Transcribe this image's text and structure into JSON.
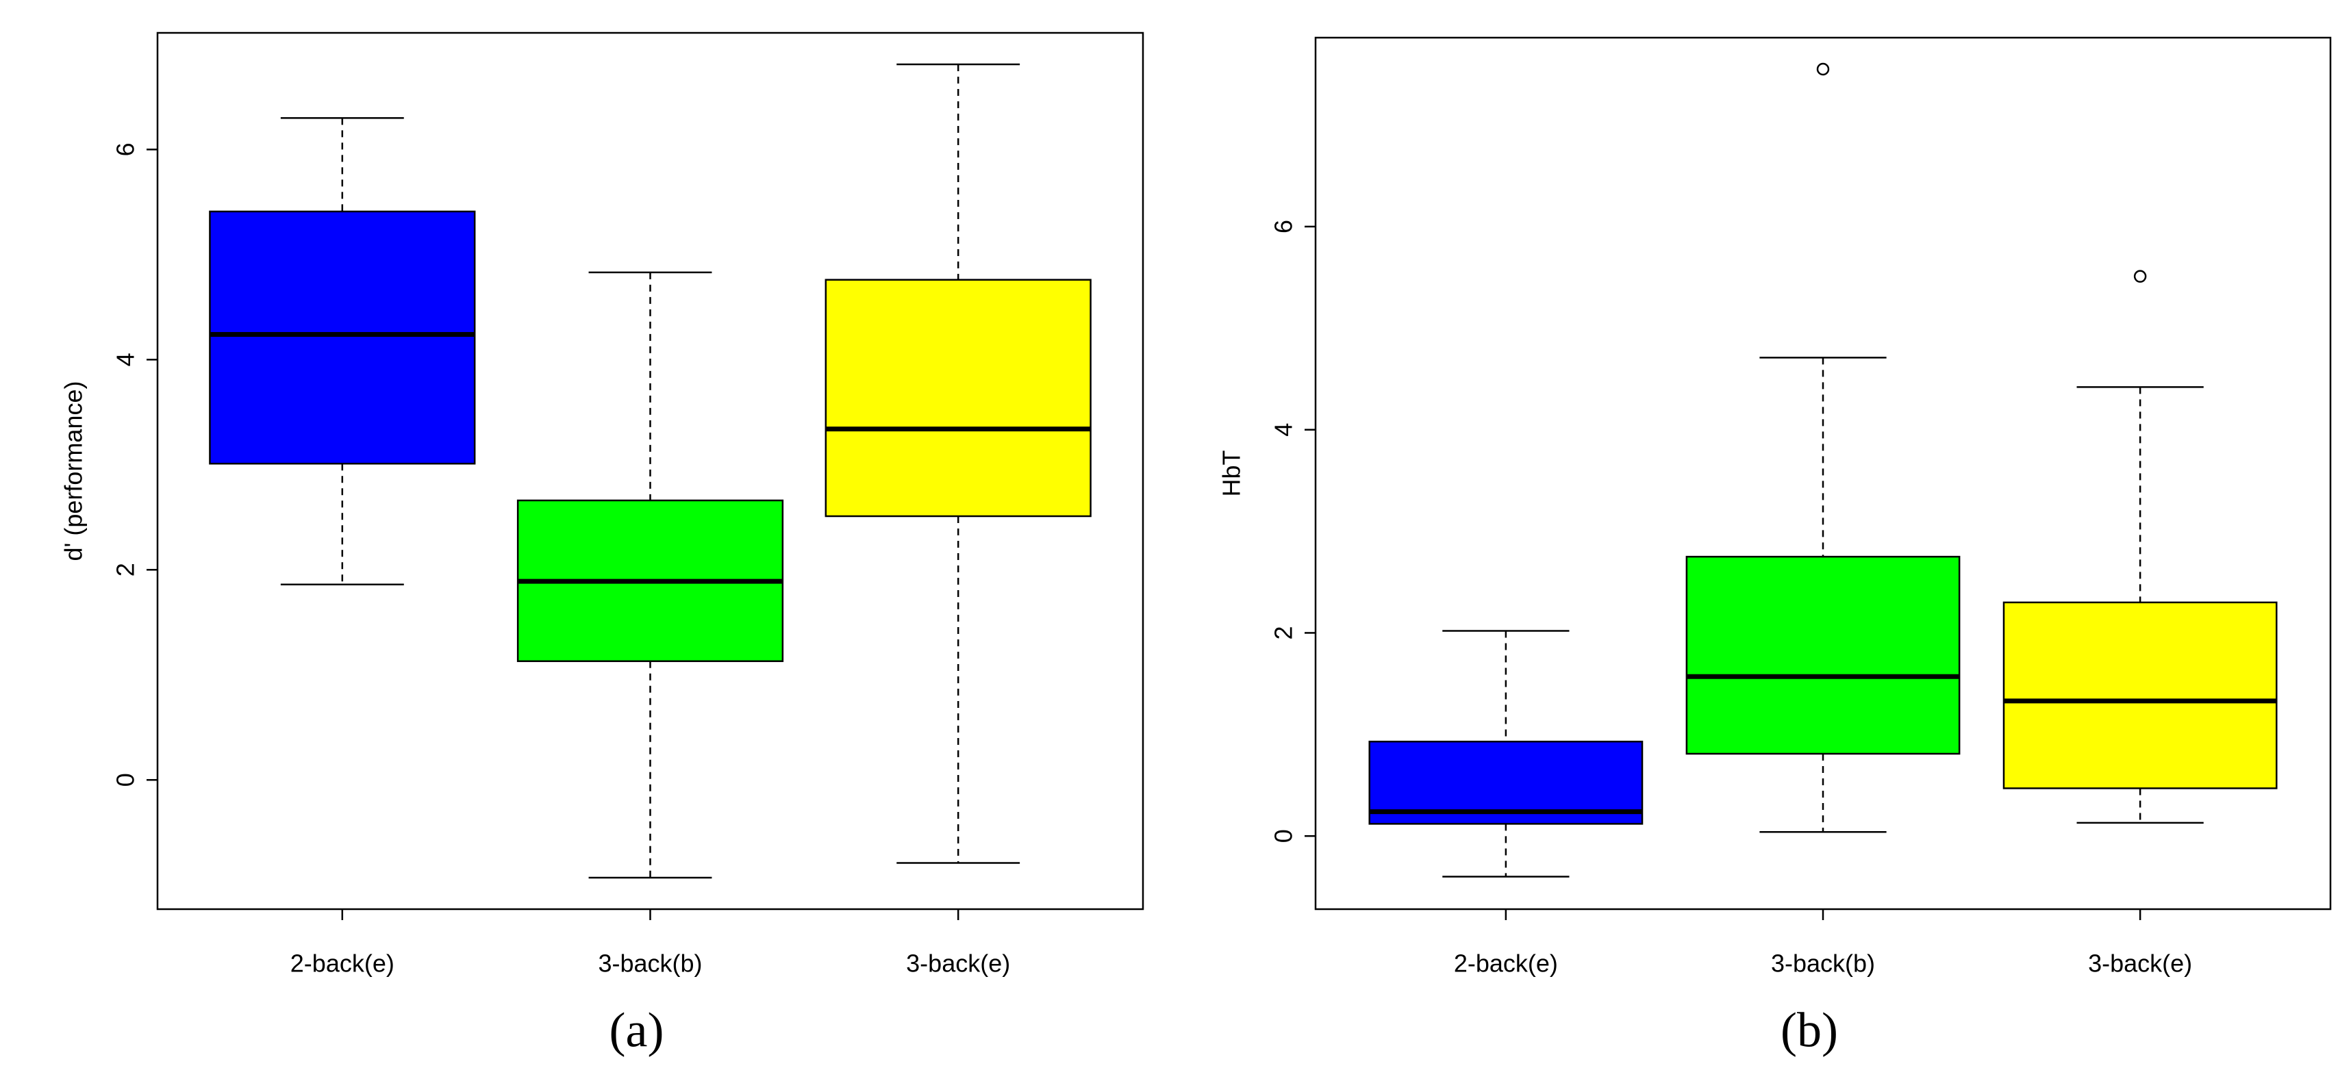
{
  "chart_data": [
    {
      "type": "box",
      "ylabel": "d' (performance)",
      "caption": "(a)",
      "categories": [
        "2-back(e)",
        "3-back(b)",
        "3-back(e)"
      ],
      "colors": [
        "#0000ff",
        "#00ff00",
        "#ffff00"
      ],
      "boxes": [
        {
          "min": 1.86,
          "q1": 3.01,
          "median": 4.24,
          "q3": 5.41,
          "max": 6.3,
          "outliers": []
        },
        {
          "min": -0.93,
          "q1": 1.13,
          "median": 1.89,
          "q3": 2.66,
          "max": 4.83,
          "outliers": []
        },
        {
          "min": -0.79,
          "q1": 2.51,
          "median": 3.34,
          "q3": 4.76,
          "max": 6.81,
          "outliers": []
        }
      ],
      "ylim": [
        -1.23,
        7.11
      ],
      "yticks": [
        0,
        2,
        4,
        6
      ]
    },
    {
      "type": "box",
      "ylabel": "HbT",
      "caption": "(b)",
      "categories": [
        "2-back(e)",
        "3-back(b)",
        "3-back(e)"
      ],
      "colors": [
        "#0000ff",
        "#00ff00",
        "#ffff00"
      ],
      "boxes": [
        {
          "min": -0.4,
          "q1": 0.12,
          "median": 0.24,
          "q3": 0.93,
          "max": 2.02,
          "outliers": []
        },
        {
          "min": 0.04,
          "q1": 0.81,
          "median": 1.57,
          "q3": 2.75,
          "max": 4.71,
          "outliers": [
            7.55
          ]
        },
        {
          "min": 0.13,
          "q1": 0.47,
          "median": 1.33,
          "q3": 2.3,
          "max": 4.42,
          "outliers": [
            5.51
          ]
        }
      ],
      "ylim": [
        -0.72,
        7.86
      ],
      "yticks": [
        0,
        2,
        4,
        6
      ]
    }
  ]
}
